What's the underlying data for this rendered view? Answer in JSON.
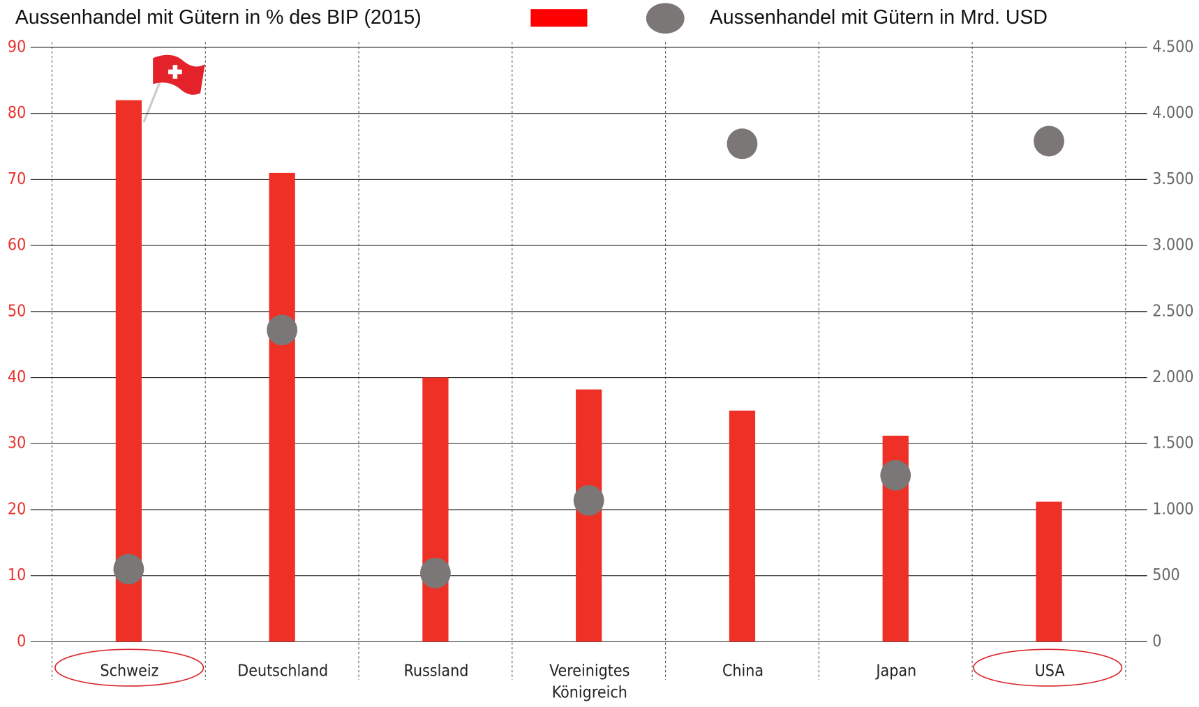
{
  "chart_data": {
    "type": "bar",
    "categories": [
      "Schweiz",
      "Deutschland",
      "Russland",
      "Vereinigtes Königreich",
      "China",
      "Japan",
      "USA"
    ],
    "series": [
      {
        "name": "Aussenhandel mit Gütern in % des BIP (2015)",
        "type": "bar",
        "color": "#ee3026",
        "values": [
          82,
          71,
          40,
          38.2,
          35,
          31.2,
          21.2
        ]
      },
      {
        "name": "Aussenhandel mit Gütern in Mrd. USD",
        "type": "scatter",
        "axis": "y2",
        "color": "#7a7776",
        "values": [
          550,
          2360,
          520,
          1070,
          3770,
          1260,
          3790
        ]
      }
    ],
    "ylim": [
      0,
      90
    ],
    "yticks": [
      0,
      10,
      20,
      30,
      40,
      50,
      60,
      70,
      80,
      90
    ],
    "y2lim": [
      0,
      4500
    ],
    "y2ticks": [
      0,
      500,
      {
        "value": 1000,
        "label": "1.000"
      },
      {
        "value": 1500,
        "label": "1.500"
      },
      {
        "value": 2000,
        "label": "2.000"
      },
      {
        "value": 2500,
        "label": "2.500"
      },
      {
        "value": 3000,
        "label": "3.000"
      },
      {
        "value": 3500,
        "label": "3.500"
      },
      {
        "value": 4000,
        "label": "4.000"
      },
      {
        "value": 4500,
        "label": "4.500"
      }
    ],
    "grid": true
  }
}
